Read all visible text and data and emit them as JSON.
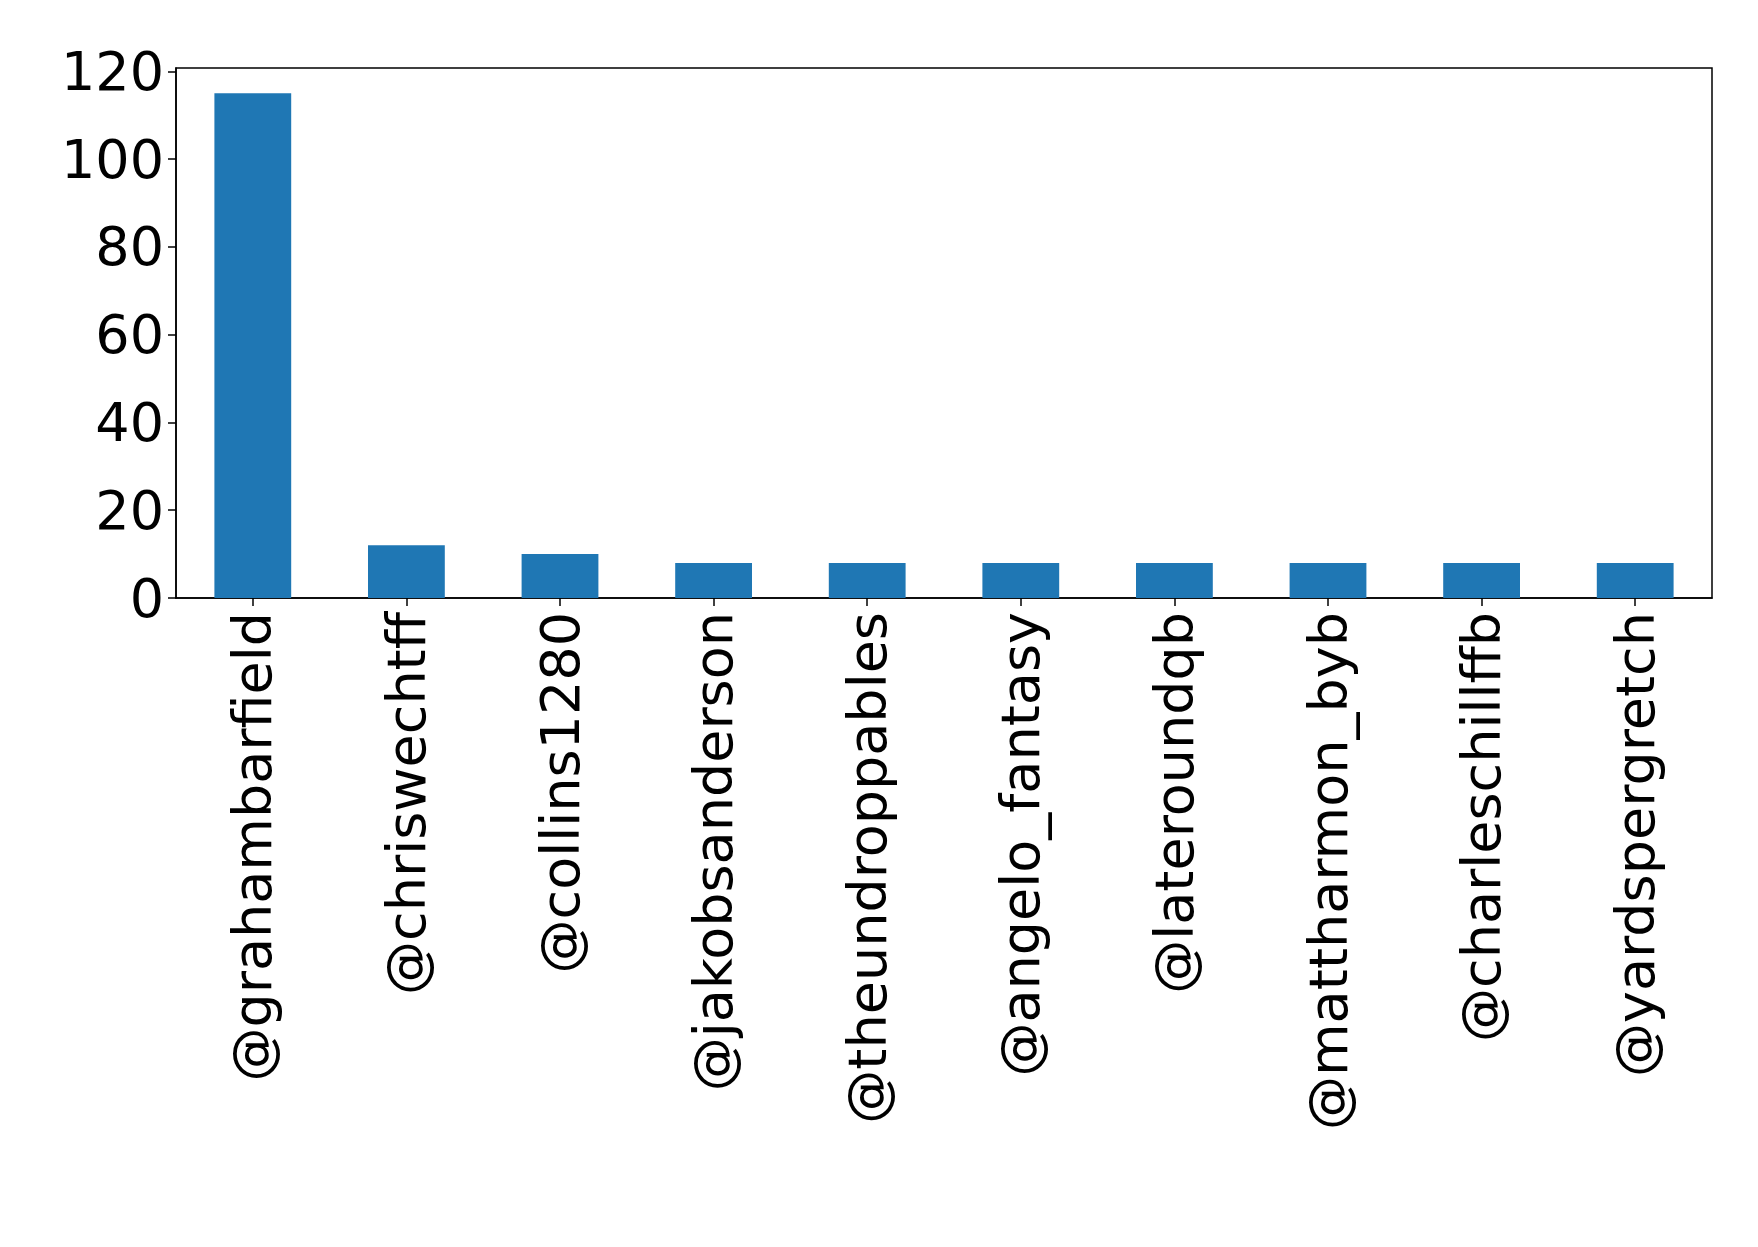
{
  "chart_data": {
    "type": "bar",
    "categories": [
      "@grahambarfield",
      "@chriswechtff",
      "@collins1280",
      "@jakobsanderson",
      "@theundroppables",
      "@angelo_fantasy",
      "@lateroundqb",
      "@mattharmon_byb",
      "@charleschillffb",
      "@yardspergretch"
    ],
    "values": [
      115,
      12,
      10,
      8,
      8,
      8,
      8,
      8,
      8,
      8
    ],
    "color": "#1f77b4",
    "ylim": [
      0,
      120.75
    ],
    "yticks": [
      0,
      20,
      40,
      60,
      80,
      100,
      120
    ]
  }
}
